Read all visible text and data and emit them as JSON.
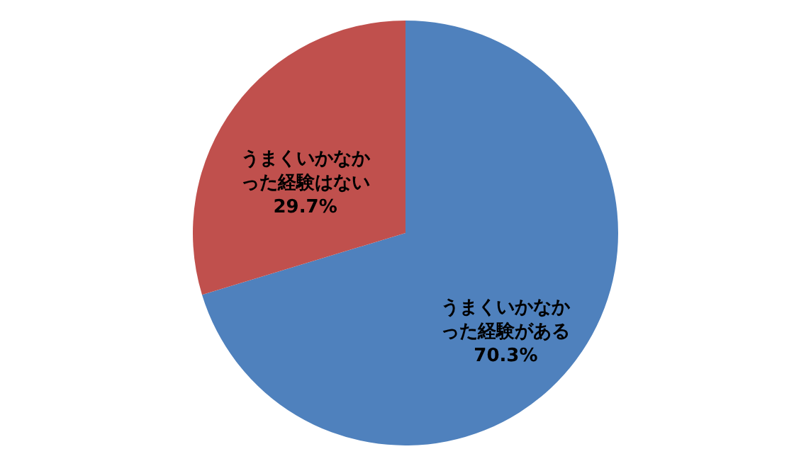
{
  "chart_data": {
    "type": "pie",
    "categories": [
      "うまくいかなかった経験がある",
      "うまくいかなかった経験はない"
    ],
    "values": [
      70.3,
      29.7
    ],
    "value_labels": [
      "70.3%",
      "29.7%"
    ],
    "colors": [
      "#4f81bd",
      "#c0504d"
    ]
  }
}
